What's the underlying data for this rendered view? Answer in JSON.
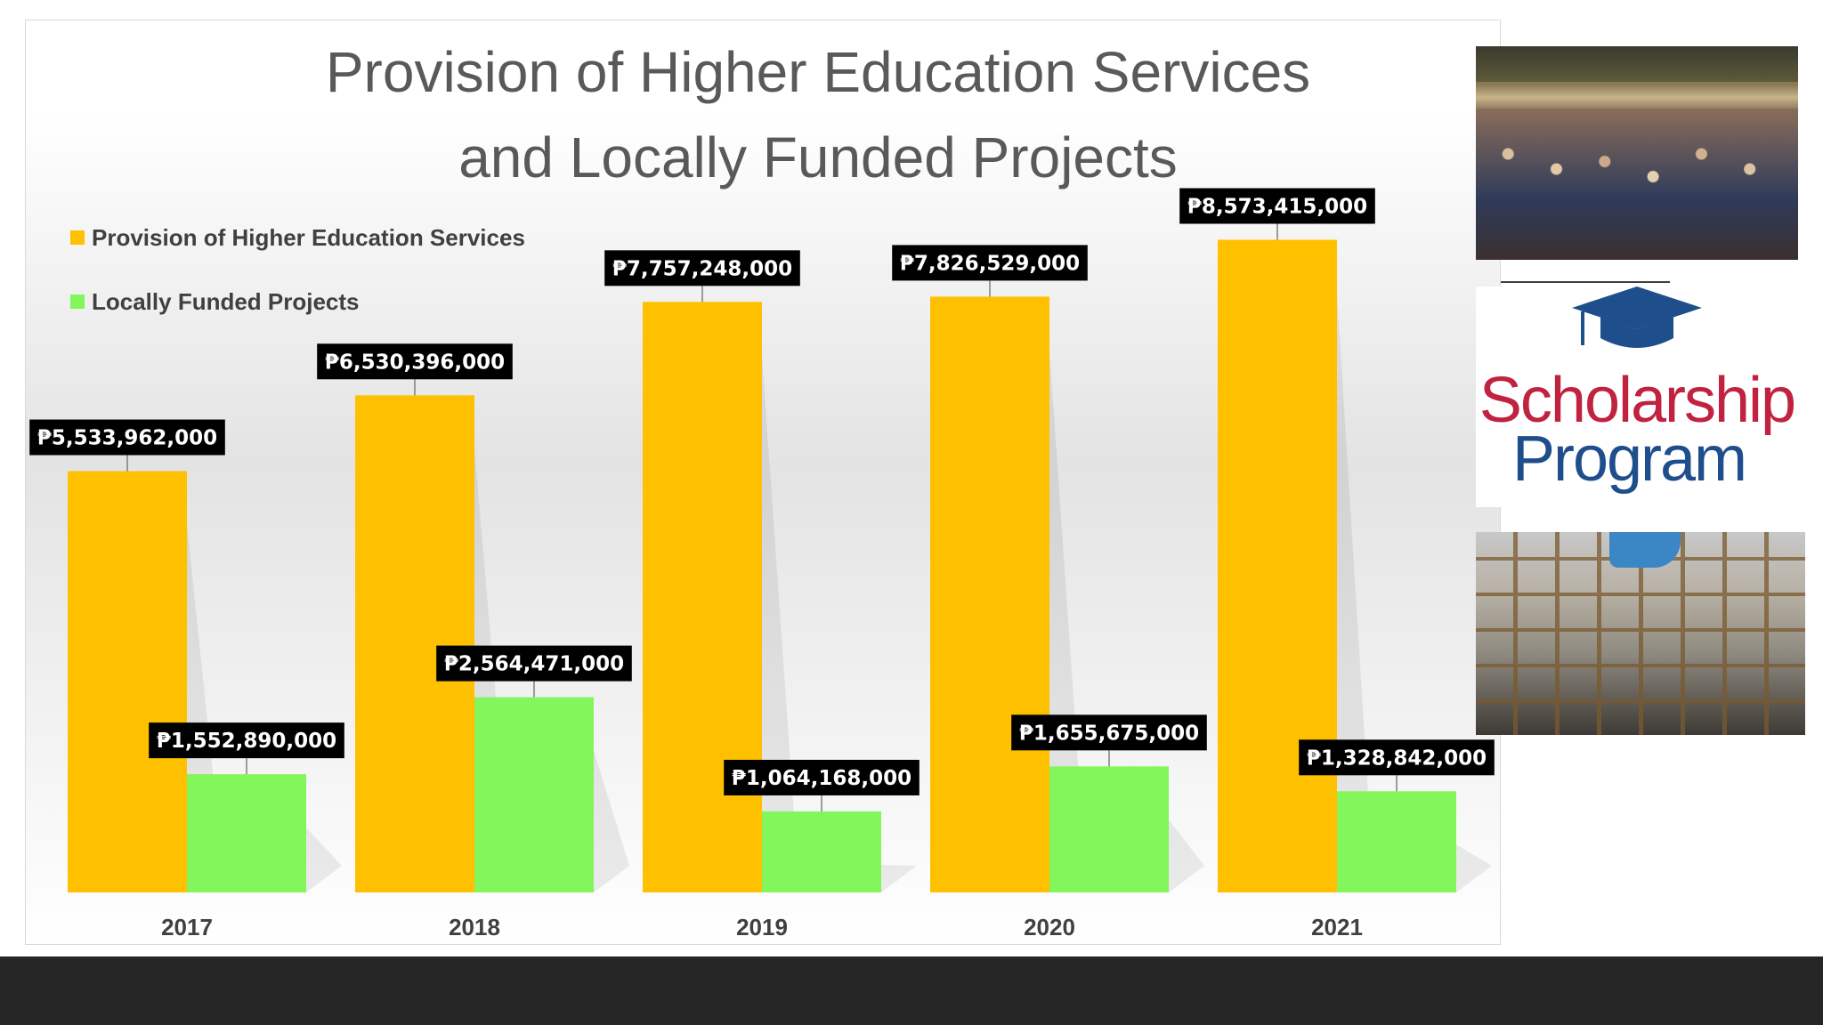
{
  "chart_data": {
    "type": "bar",
    "title_lines": [
      "Provision of Higher Education Services",
      "and Locally Funded Projects"
    ],
    "categories": [
      "2017",
      "2018",
      "2019",
      "2020",
      "2021"
    ],
    "series": [
      {
        "name": "Provision of Higher Education Services",
        "color": "#FFC000",
        "values": [
          5533962000,
          6530396000,
          7757248000,
          7826529000,
          8573415000
        ],
        "labels": [
          "₱5,533,962,000",
          "₱6,530,396,000",
          "₱7,757,248,000",
          "₱7,826,529,000",
          "₱8,573,415,000"
        ]
      },
      {
        "name": "Locally Funded Projects",
        "color": "#82F65A",
        "values": [
          1552890000,
          2564471000,
          1064168000,
          1655675000,
          1328842000
        ],
        "labels": [
          "₱1,552,890,000",
          "₱2,564,471,000",
          "₱1,064,168,000",
          "₱1,655,675,000",
          "₱1,328,842,000"
        ]
      }
    ],
    "ylim": [
      0,
      9000000000
    ],
    "legend_position": "top-left",
    "grid": false
  },
  "images": {
    "scholarship_logo_text": [
      "Scholarship",
      "Program"
    ],
    "logo_colors": {
      "scholarship": "#C0223F",
      "program": "#1F4E8C",
      "cap": "#1F4E8C"
    }
  },
  "colors": {
    "footer": "#262626",
    "label_box": "#000000"
  }
}
